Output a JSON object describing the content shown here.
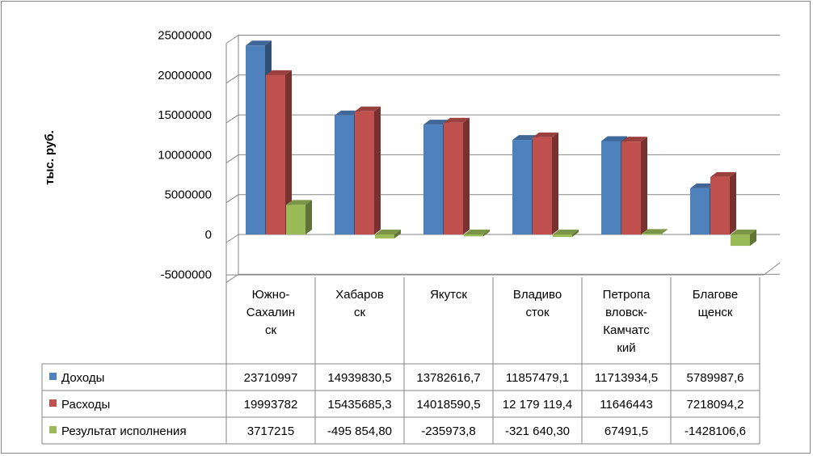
{
  "chart_data": {
    "type": "bar",
    "title": "",
    "xlabel": "",
    "ylabel": "тыс. руб.",
    "ylim": [
      -5000000,
      25000000
    ],
    "yticks": [
      -5000000,
      0,
      5000000,
      10000000,
      15000000,
      20000000,
      25000000
    ],
    "ytick_labels": [
      "-5000000",
      "0",
      "5000000",
      "10000000",
      "15000000",
      "20000000",
      "25000000"
    ],
    "grid": true,
    "legend_placement": "data-table",
    "categories": [
      "Южно-Сахалинск",
      "Хабаровск",
      "Якутск",
      "Владивосток",
      "Петропавловск-Камчатский",
      "Благовещенск"
    ],
    "category_lines": [
      [
        "Южно-",
        "Сахалин",
        "ск"
      ],
      [
        "Хабаров",
        "ск"
      ],
      [
        "Якутск"
      ],
      [
        "Владиво",
        "сток"
      ],
      [
        "Петропа",
        "вловск-",
        "Камчатс",
        "кий"
      ],
      [
        "Благове",
        "щенск"
      ]
    ],
    "series": [
      {
        "name": "Доходы",
        "color": "#4F81BD",
        "values": [
          23710997,
          14939830.5,
          13782616.7,
          11857479.1,
          11713934.5,
          5789987.6
        ],
        "labels": [
          "23710997",
          "14939830,5",
          "13782616,7",
          "11857479,1",
          "11713934,5",
          "5789987,6"
        ]
      },
      {
        "name": "Расходы",
        "color": "#C0504D",
        "values": [
          19993782,
          15435685.3,
          14018590.5,
          12179119.4,
          11646443,
          7218094.2
        ],
        "labels": [
          "19993782",
          "15435685,3",
          "14018590,5",
          "12 179 119,4",
          "11646443",
          "7218094,2"
        ]
      },
      {
        "name": "Результат исполнения",
        "color": "#9BBB59",
        "values": [
          3717215,
          -495854.8,
          -235973.8,
          -321640.3,
          67491.5,
          -1428106.6
        ],
        "labels": [
          "3717215",
          "-495 854,80",
          "-235973,8",
          "-321 640,30",
          "67491,5",
          "-1428106,6"
        ]
      }
    ]
  }
}
